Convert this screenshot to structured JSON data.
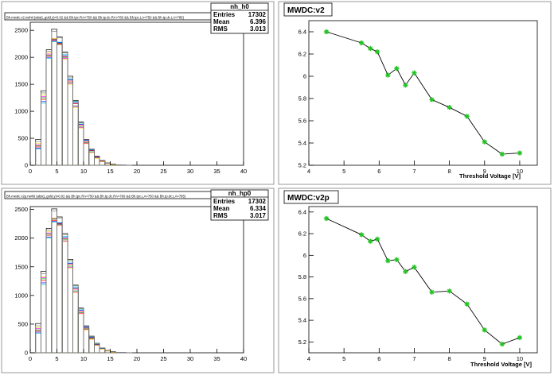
{
  "chart_data": [
    {
      "type": "histogram",
      "title": "",
      "header_text": "Bh.mwdc.v2.nwhit {abs(L.gold.y)<0.02 && Bh.tpc.RA<750 && Bh.tp.dc.RA>760 && Bh.tpc.LA<750 && Bh.tp.dc.LA>785}",
      "stats": {
        "name": "nh_h0",
        "rows": [
          {
            "label": "Entries",
            "value": "17302"
          },
          {
            "label": "Mean",
            "value": "6.396"
          },
          {
            "label": "RMS",
            "value": "3.013"
          }
        ]
      },
      "xlim": [
        0,
        40
      ],
      "ylim": [
        0,
        2650
      ],
      "x_ticks": [
        0,
        5,
        10,
        15,
        20,
        25,
        30,
        35,
        40
      ],
      "y_ticks": [
        0,
        500,
        1000,
        1500,
        2000,
        2500
      ],
      "series": [
        {
          "color": "#ff0000",
          "values": [
            0,
            340,
            1220,
            2020,
            2320,
            2260,
            2010,
            1560,
            1140,
            740,
            440,
            270,
            150,
            80,
            40,
            18,
            8,
            3,
            1,
            0
          ]
        },
        {
          "color": "#00aa00",
          "values": [
            0,
            360,
            1250,
            2040,
            2330,
            2250,
            1990,
            1530,
            1100,
            710,
            420,
            250,
            140,
            70,
            34,
            15,
            7,
            2,
            1,
            0
          ]
        },
        {
          "color": "#0000ff",
          "values": [
            0,
            320,
            1180,
            2000,
            2300,
            2270,
            2030,
            1580,
            1160,
            760,
            460,
            280,
            160,
            85,
            42,
            19,
            8,
            3,
            1,
            0
          ]
        },
        {
          "color": "#ff00ff",
          "values": [
            0,
            380,
            1270,
            2060,
            2340,
            2240,
            1980,
            1520,
            1090,
            700,
            410,
            240,
            135,
            68,
            32,
            14,
            6,
            2,
            1,
            0
          ]
        },
        {
          "color": "#00cccc",
          "values": [
            0,
            300,
            1150,
            1980,
            2290,
            2280,
            2050,
            1600,
            1180,
            780,
            470,
            290,
            165,
            88,
            44,
            20,
            9,
            3,
            1,
            0
          ]
        },
        {
          "color": "#ffcc00",
          "values": [
            0,
            400,
            1300,
            2080,
            2350,
            2230,
            1960,
            1500,
            1070,
            690,
            400,
            235,
            130,
            65,
            30,
            13,
            6,
            2,
            1,
            0
          ]
        },
        {
          "color": "#000000",
          "values": [
            0,
            480,
            1380,
            2140,
            2520,
            2380,
            2100,
            1650,
            1200,
            800,
            480,
            300,
            170,
            90,
            45,
            22,
            10,
            4,
            1,
            0
          ]
        },
        {
          "color": "#808080",
          "values": [
            0,
            440,
            1340,
            2110,
            2480,
            2360,
            2080,
            1620,
            1190,
            790,
            475,
            295,
            168,
            88,
            44,
            21,
            9,
            3,
            1,
            0
          ]
        }
      ]
    },
    {
      "type": "line",
      "title": "MWDC:v2",
      "xlabel": "Threshold Voltage [V]",
      "xlim": [
        4,
        10.5
      ],
      "ylim": [
        5.2,
        6.5
      ],
      "x_ticks": [
        4,
        5,
        6,
        7,
        8,
        9,
        10
      ],
      "y_ticks": [
        5.2,
        5.4,
        5.6,
        5.8,
        6.0,
        6.2,
        6.4
      ],
      "y_tick_labels": [
        "5.2",
        "5.4",
        "5.6",
        "5.8",
        "6",
        "6.2",
        "6.4"
      ],
      "x": [
        4.5,
        5.5,
        5.75,
        5.95,
        6.25,
        6.5,
        6.75,
        7.0,
        7.5,
        8.0,
        8.5,
        9.0,
        9.5,
        10.0
      ],
      "y": [
        6.4,
        6.3,
        6.25,
        6.22,
        6.01,
        6.07,
        5.92,
        6.03,
        5.79,
        5.72,
        5.64,
        5.41,
        5.3,
        5.31
      ]
    },
    {
      "type": "histogram",
      "title": "",
      "header_text": "Bh.mwdc.v2p.nwhit {abs(L.gold.y)<0.02 && Bh.tpc.RA<750 && Bh.tp.dc.RA>760 && Bh.tpc.LA<750 && Bh.tp.dc.LA>785}",
      "stats": {
        "name": "nh_hp0",
        "rows": [
          {
            "label": "Entries",
            "value": "17302"
          },
          {
            "label": "Mean",
            "value": "6.334"
          },
          {
            "label": "RMS",
            "value": "3.017"
          }
        ]
      },
      "xlim": [
        0,
        40
      ],
      "ylim": [
        0,
        2550
      ],
      "x_ticks": [
        0,
        5,
        10,
        15,
        20,
        25,
        30,
        35,
        40
      ],
      "y_ticks": [
        0,
        500,
        1000,
        1500,
        2000,
        2500
      ],
      "series": [
        {
          "color": "#ff0000",
          "values": [
            0,
            380,
            1260,
            2050,
            2310,
            2250,
            1990,
            1540,
            1110,
            720,
            430,
            260,
            145,
            75,
            36,
            16,
            7,
            3,
            1,
            0
          ]
        },
        {
          "color": "#00aa00",
          "values": [
            0,
            400,
            1290,
            2070,
            2330,
            2240,
            1970,
            1510,
            1080,
            700,
            415,
            250,
            138,
            70,
            33,
            15,
            6,
            2,
            1,
            0
          ]
        },
        {
          "color": "#0000ff",
          "values": [
            0,
            360,
            1220,
            2020,
            2290,
            2260,
            2010,
            1560,
            1130,
            740,
            445,
            270,
            152,
            78,
            38,
            17,
            7,
            3,
            1,
            0
          ]
        },
        {
          "color": "#ff00ff",
          "values": [
            0,
            420,
            1310,
            2090,
            2340,
            2230,
            1950,
            1490,
            1060,
            690,
            405,
            240,
            132,
            66,
            31,
            14,
            6,
            2,
            1,
            0
          ]
        },
        {
          "color": "#00cccc",
          "values": [
            0,
            340,
            1190,
            2000,
            2280,
            2270,
            2030,
            1580,
            1150,
            760,
            455,
            280,
            158,
            82,
            40,
            18,
            8,
            3,
            1,
            0
          ]
        },
        {
          "color": "#ffcc00",
          "values": [
            0,
            440,
            1330,
            2110,
            2350,
            2220,
            1940,
            1480,
            1050,
            680,
            400,
            235,
            128,
            64,
            30,
            13,
            5,
            2,
            1,
            0
          ]
        },
        {
          "color": "#000000",
          "values": [
            0,
            510,
            1420,
            2170,
            2510,
            2370,
            2080,
            1630,
            1180,
            780,
            470,
            290,
            165,
            86,
            43,
            21,
            9,
            4,
            1,
            0
          ]
        },
        {
          "color": "#808080",
          "values": [
            0,
            470,
            1380,
            2140,
            2470,
            2350,
            2060,
            1610,
            1170,
            770,
            465,
            285,
            162,
            85,
            42,
            20,
            9,
            3,
            1,
            0
          ]
        }
      ]
    },
    {
      "type": "line",
      "title": "MWDC:v2p",
      "xlabel": "Threshold Voltage [V]",
      "xlim": [
        4,
        10.5
      ],
      "ylim": [
        5.1,
        6.45
      ],
      "x_ticks": [
        4,
        5,
        6,
        7,
        8,
        9,
        10
      ],
      "y_ticks": [
        5.2,
        5.4,
        5.6,
        5.8,
        6.0,
        6.2,
        6.4
      ],
      "y_tick_labels": [
        "5.2",
        "5.4",
        "5.6",
        "5.8",
        "6",
        "6.2",
        "6.4"
      ],
      "x": [
        4.5,
        5.5,
        5.75,
        5.95,
        6.25,
        6.5,
        6.75,
        7.0,
        7.5,
        8.0,
        8.5,
        9.0,
        9.5,
        10.0
      ],
      "y": [
        6.34,
        6.19,
        6.13,
        6.15,
        5.95,
        5.96,
        5.85,
        5.89,
        5.66,
        5.67,
        5.55,
        5.31,
        5.18,
        5.24
      ]
    }
  ]
}
